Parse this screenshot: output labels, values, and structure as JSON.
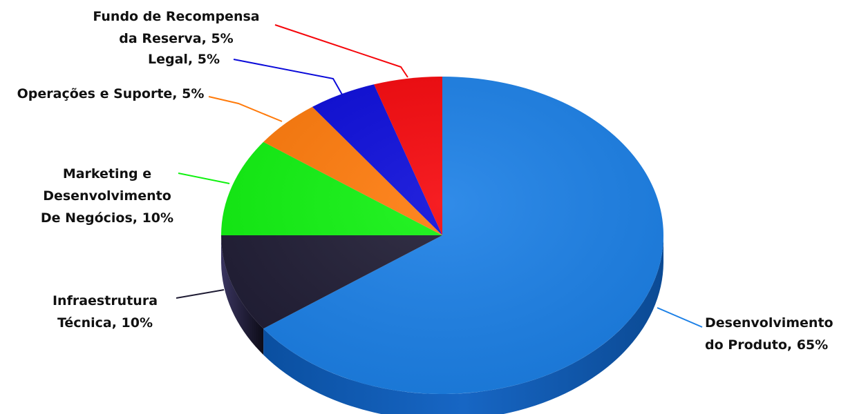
{
  "chart_data": {
    "type": "pie",
    "slices": [
      {
        "label_lines": [
          "Desenvolvimento",
          "do Produto, 65%"
        ],
        "value": 65,
        "color": "#1a7fe6"
      },
      {
        "label_lines": [
          "Infraestrutura",
          "Técnica, 10%"
        ],
        "value": 10,
        "color": "#1e1b33"
      },
      {
        "label_lines": [
          "Marketing e",
          "Desenvolvimento",
          "De Negócios, 10%"
        ],
        "value": 10,
        "color": "#0ff20f"
      },
      {
        "label_lines": [
          "Operações e Suporte, 5%"
        ],
        "value": 5,
        "color": "#ff7a0a"
      },
      {
        "label_lines": [
          "Legal, 5%"
        ],
        "value": 5,
        "color": "#0a0ad9"
      },
      {
        "label_lines": [
          "Fundo de Recompensa",
          "da Reserva, 5%"
        ],
        "value": 5,
        "color": "#f5050a"
      }
    ],
    "style": "3d",
    "legend": "none"
  }
}
